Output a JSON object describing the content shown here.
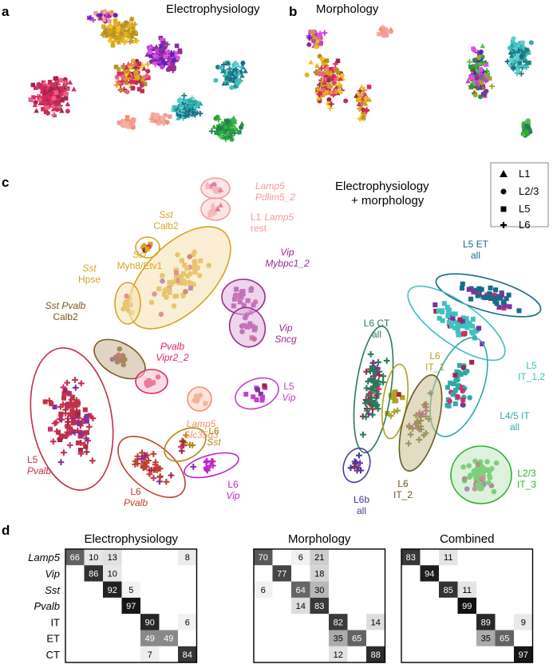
{
  "panels": {
    "a": {
      "letter": "a",
      "title": "Electrophysiology"
    },
    "b": {
      "letter": "b",
      "title": "Morphology"
    },
    "c": {
      "letter": "c",
      "title_line1": "Electrophysiology",
      "title_line2": "+ morphology"
    },
    "d": {
      "letter": "d"
    }
  },
  "legend": {
    "items": [
      {
        "label": "L1",
        "marker": "triangle"
      },
      {
        "label": "L2/3",
        "marker": "circle"
      },
      {
        "label": "L5",
        "marker": "square"
      },
      {
        "label": "L6",
        "marker": "plus"
      }
    ]
  },
  "cluster_labels": [
    {
      "id": "lamp5-pdlim5",
      "l1": "Lamp5",
      "l1i": true,
      "l2": "Pdlim5_2",
      "l2i": true,
      "color": "#f29b9b"
    },
    {
      "id": "l1-lamp5",
      "l1": "L1",
      "l1i": false,
      "l1b": "Lamp5",
      "l2": "rest",
      "l2i": false,
      "color": "#f29b9b"
    },
    {
      "id": "sst-calb2",
      "l1": "Sst",
      "l1i": true,
      "l2": "Calb2",
      "l2i": false,
      "color": "#d4a520"
    },
    {
      "id": "sst-myh8",
      "l1": "Sst",
      "l1i": true,
      "l2": "Myh8/Etv1",
      "l2i": false,
      "color": "#d4a520"
    },
    {
      "id": "sst-hpse",
      "l1": "Sst",
      "l1i": true,
      "l2": "Hpse",
      "l2i": false,
      "color": "#d4a520"
    },
    {
      "id": "sst-pvalb",
      "l1": "Sst Pvalb",
      "l1i": true,
      "l2": "Calb2",
      "l2i": false,
      "color": "#7a5a1e"
    },
    {
      "id": "vip-mybpc1",
      "l1": "Vip",
      "l1i": true,
      "l2": "Mybpc1_2",
      "l2i": true,
      "color": "#9a2c8f"
    },
    {
      "id": "vip-sncg",
      "l1": "Vip",
      "l1i": true,
      "l2": "Sncg",
      "l2i": true,
      "color": "#9a2c8f"
    },
    {
      "id": "pvalb-vipr2",
      "l1": "Pvalb",
      "l1i": true,
      "l2": "Vipr2_2",
      "l2i": true,
      "color": "#e0245e"
    },
    {
      "id": "lamp5-slc35d3",
      "l1": "Lamp5",
      "l1i": true,
      "l2": "Slc35d3",
      "l2i": true,
      "color": "#f0906a"
    },
    {
      "id": "l5-vip",
      "l1": "L5",
      "l1i": false,
      "l2": "Vip",
      "l2i": true,
      "color": "#c040d0"
    },
    {
      "id": "l5-pvalb",
      "l1": "L5",
      "l1i": false,
      "l2": "Pvalb",
      "l2i": true,
      "color": "#c0304a"
    },
    {
      "id": "l6-pvalb",
      "l1": "L6",
      "l1i": false,
      "l2": "Pvalb",
      "l2i": true,
      "color": "#c0402a"
    },
    {
      "id": "l6-sst",
      "l1": "L6",
      "l1i": false,
      "l2": "Sst",
      "l2i": true,
      "color": "#b08a10"
    },
    {
      "id": "l6-vip",
      "l1": "L6",
      "l1i": false,
      "l2": "Vip",
      "l2i": true,
      "color": "#c020d0"
    },
    {
      "id": "l5-et",
      "l1": "L5 ET",
      "l1i": false,
      "l2": "all",
      "l2i": false,
      "color": "#1a6a8a"
    },
    {
      "id": "l6-ct",
      "l1": "L6 CT",
      "l1i": false,
      "l2": "all",
      "l2i": false,
      "color": "#2a7a5a"
    },
    {
      "id": "l6-it1",
      "l1": "L6",
      "l1i": false,
      "l2": "IT_1",
      "l2i": false,
      "color": "#b0a020"
    },
    {
      "id": "l5-it12",
      "l1": "L5",
      "l1i": false,
      "l2": "IT_1,2",
      "l2i": false,
      "color": "#40c0c0"
    },
    {
      "id": "l45-it",
      "l1": "L4/5 IT",
      "l1i": false,
      "l2": "all",
      "l2i": false,
      "color": "#30a8a8"
    },
    {
      "id": "l23-it3",
      "l1": "L2/3",
      "l1i": false,
      "l2": "IT_3",
      "l2i": false,
      "color": "#30b030"
    },
    {
      "id": "l6-it2",
      "l1": "L6",
      "l1i": false,
      "l2": "IT_2",
      "l2i": false,
      "color": "#6a5a20"
    },
    {
      "id": "l6b",
      "l1": "L6b",
      "l1i": false,
      "l2": "all",
      "l2i": false,
      "color": "#4a3a9a"
    }
  ],
  "chart_data": [
    {
      "type": "heatmap",
      "title": "Electrophysiology",
      "rows": [
        "Lamp5",
        "Vip",
        "Sst",
        "Pvalb",
        "IT",
        "ET",
        "CT"
      ],
      "row_italic": [
        true,
        true,
        true,
        true,
        false,
        false,
        false
      ],
      "matrix": [
        [
          66,
          10,
          13,
          0,
          0,
          0,
          8
        ],
        [
          0,
          86,
          10,
          0,
          0,
          0,
          0
        ],
        [
          0,
          0,
          92,
          5,
          0,
          0,
          0
        ],
        [
          0,
          0,
          0,
          97,
          0,
          0,
          0
        ],
        [
          0,
          0,
          0,
          0,
          90,
          0,
          6
        ],
        [
          0,
          0,
          0,
          0,
          49,
          49,
          0
        ],
        [
          0,
          0,
          0,
          0,
          7,
          0,
          84
        ]
      ]
    },
    {
      "type": "heatmap",
      "title": "Morphology",
      "rows": [
        "Lamp5",
        "Vip",
        "Sst",
        "Pvalb",
        "IT",
        "ET",
        "CT"
      ],
      "matrix": [
        [
          70,
          0,
          6,
          21,
          0,
          0,
          0
        ],
        [
          0,
          77,
          0,
          18,
          0,
          0,
          0
        ],
        [
          6,
          0,
          64,
          30,
          0,
          0,
          0
        ],
        [
          0,
          0,
          14,
          83,
          0,
          0,
          0
        ],
        [
          0,
          0,
          0,
          0,
          82,
          0,
          14
        ],
        [
          0,
          0,
          0,
          0,
          35,
          65,
          0
        ],
        [
          0,
          0,
          0,
          0,
          12,
          0,
          88
        ]
      ]
    },
    {
      "type": "heatmap",
      "title": "Combined",
      "rows": [
        "Lamp5",
        "Vip",
        "Sst",
        "Pvalb",
        "IT",
        "ET",
        "CT"
      ],
      "matrix": [
        [
          83,
          0,
          11,
          0,
          0,
          0,
          0
        ],
        [
          0,
          94,
          0,
          0,
          0,
          0,
          0
        ],
        [
          0,
          0,
          85,
          11,
          0,
          0,
          0
        ],
        [
          0,
          0,
          0,
          99,
          0,
          0,
          0
        ],
        [
          0,
          0,
          0,
          0,
          89,
          0,
          9
        ],
        [
          0,
          0,
          0,
          0,
          35,
          65,
          0
        ],
        [
          0,
          0,
          0,
          0,
          0,
          0,
          97
        ]
      ]
    }
  ],
  "palette": {
    "pinks": [
      "#e0245e",
      "#c0304a",
      "#a0264a",
      "#d0306a",
      "#f06080"
    ],
    "golds": [
      "#d4a520",
      "#c8a030",
      "#b89020",
      "#e0b020",
      "#f0c020"
    ],
    "purples": [
      "#9a2c8f",
      "#c040d0",
      "#8030a0",
      "#6020c0",
      "#e050e0"
    ],
    "salmons": [
      "#f29b9b",
      "#f0906a",
      "#f5b0a0"
    ],
    "teals": [
      "#1a6a8a",
      "#40c0c0",
      "#30a8a8",
      "#208080",
      "#60d0d0"
    ],
    "greens": [
      "#30b030",
      "#20a040",
      "#50c050",
      "#2a7a5a"
    ],
    "olives": [
      "#b0a020",
      "#6a5a20",
      "#8a7a20"
    ]
  }
}
